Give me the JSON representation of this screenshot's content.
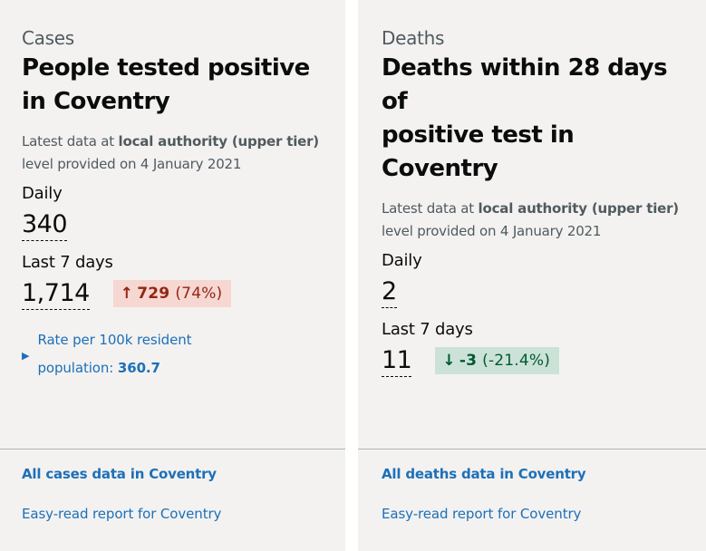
{
  "cases": {
    "category": "Cases",
    "title_line1": "People tested positive",
    "title_line2": "in Coventry",
    "meta_prefix": "Latest data at ",
    "meta_area": "local authority (upper tier)",
    "meta_suffix": "level provided on 4 January 2021",
    "daily_label": "Daily",
    "daily_value": "340",
    "week_label": "Last 7 days",
    "week_value": "1,714",
    "change_arrow": "↑",
    "change_delta": "729",
    "change_pct": "(74%)",
    "rate_line1": "Rate per 100k resident",
    "rate_line2_prefix": "population: ",
    "rate_value": "360.7",
    "link_all": "All cases data in Coventry",
    "link_easy": "Easy-read report for Coventry"
  },
  "deaths": {
    "category": "Deaths",
    "title_line1": "Deaths within 28 days of",
    "title_line2": "positive test in Coventry",
    "meta_prefix": "Latest data at ",
    "meta_area": "local authority (upper tier)",
    "meta_suffix": "level provided on 4 January 2021",
    "daily_label": "Daily",
    "daily_value": "2",
    "week_label": "Last 7 days",
    "week_value": "11",
    "change_arrow": "↓",
    "change_delta": "-3",
    "change_pct": "(-21.4%)",
    "link_all": "All deaths data in Coventry",
    "link_easy": "Easy-read report for Coventry"
  },
  "colors": {
    "link": "#1d70b8",
    "up_bg": "#f6d7d2",
    "up_text": "#942514",
    "down_bg": "#cce2d8",
    "down_text": "#005a30",
    "card_bg": "#f3f2f1"
  }
}
